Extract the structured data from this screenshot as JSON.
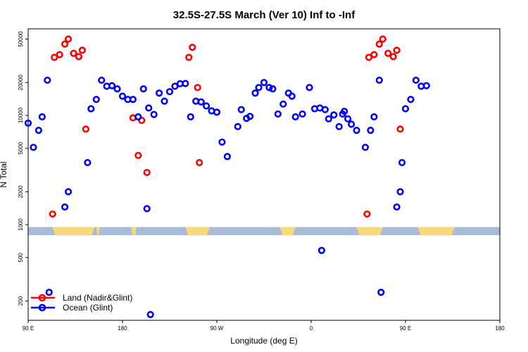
{
  "chart_data": {
    "type": "scatter",
    "title": "32.5S-27.5S March (Ver 10)   Inf to -Inf",
    "xlabel": "Longitude (deg E)",
    "ylabel": "N Total",
    "x_axis": {
      "range": [
        -90,
        180
      ],
      "ticks": [
        -90,
        -36,
        18,
        72,
        126,
        180
      ],
      "tick_labels": [
        "90 E",
        "180",
        "90 W",
        "0",
        "90 E",
        "180"
      ]
    },
    "y_axis": {
      "scale": "log",
      "range": [
        133,
        62000
      ],
      "ticks": [
        200,
        500,
        1000,
        2000,
        5000,
        10000,
        20000,
        50000
      ],
      "tick_labels": [
        "200",
        "500",
        "1000",
        "2000",
        "5000",
        "10000",
        "20000",
        "50000"
      ]
    },
    "map_strip": {
      "y_range": [
        800,
        950
      ],
      "ocean_color": "#a8bcd8",
      "land_color": "#f8d878",
      "land_segments": [
        [
          -76,
          -52
        ],
        [
          -51,
          -49
        ],
        [
          -51,
          -49
        ],
        [
          -31,
          -29
        ],
        [
          -30,
          -28
        ],
        [
          0,
          14
        ],
        [
          54,
          63
        ],
        [
          98,
          108
        ],
        [
          133,
          154
        ],
        [
          105,
          113
        ]
      ]
    },
    "series": [
      {
        "name": "Land (Nadir&Glint)",
        "color": "#ff0000",
        "points": [
          [
            -76,
            1250
          ],
          [
            -75,
            34000
          ],
          [
            -72,
            36000
          ],
          [
            -69,
            45000
          ],
          [
            -67,
            50000
          ],
          [
            -64,
            37000
          ],
          [
            -61,
            34500
          ],
          [
            -59,
            39500
          ],
          [
            -57,
            7500
          ],
          [
            -30,
            9500
          ],
          [
            -27,
            4300
          ],
          [
            -25,
            9000
          ],
          [
            -22,
            3000
          ],
          [
            2,
            34000
          ],
          [
            4,
            42000
          ],
          [
            7,
            18000
          ],
          [
            8,
            3700
          ],
          [
            104,
            1250
          ],
          [
            105,
            34000
          ],
          [
            108,
            36000
          ],
          [
            111,
            45000
          ],
          [
            113,
            50000
          ],
          [
            116,
            37000
          ],
          [
            119,
            34500
          ],
          [
            121,
            39500
          ],
          [
            123,
            7500
          ]
        ]
      },
      {
        "name": "Ocean (Glint)",
        "color": "#0000ff",
        "points": [
          [
            -90,
            8500
          ],
          [
            -87,
            5100
          ],
          [
            -84,
            7300
          ],
          [
            -82,
            9700
          ],
          [
            -79,
            21000
          ],
          [
            -78,
            240
          ],
          [
            -69,
            1450
          ],
          [
            -67,
            2000
          ],
          [
            -56,
            3700
          ],
          [
            -54,
            11500
          ],
          [
            -51,
            14000
          ],
          [
            -48,
            21000
          ],
          [
            -45,
            18500
          ],
          [
            -42,
            18700
          ],
          [
            -39,
            17500
          ],
          [
            -36,
            15000
          ],
          [
            -33,
            14000
          ],
          [
            -30,
            14000
          ],
          [
            -27,
            9700
          ],
          [
            -24,
            17500
          ],
          [
            -21,
            11700
          ],
          [
            -18,
            10200
          ],
          [
            -15,
            16000
          ],
          [
            -12,
            13500
          ],
          [
            -9,
            16500
          ],
          [
            -6,
            18500
          ],
          [
            -3,
            19500
          ],
          [
            0,
            19600
          ],
          [
            3,
            9700
          ],
          [
            6,
            13500
          ],
          [
            9,
            13300
          ],
          [
            12,
            12200
          ],
          [
            15,
            11000
          ],
          [
            18,
            10700
          ],
          [
            21,
            5700
          ],
          [
            24,
            4200
          ],
          [
            30,
            7900
          ],
          [
            32,
            11300
          ],
          [
            35,
            9400
          ],
          [
            37,
            9800
          ],
          [
            40,
            16000
          ],
          [
            42,
            18000
          ],
          [
            45,
            20000
          ],
          [
            48,
            18000
          ],
          [
            50,
            17500
          ],
          [
            53,
            10300
          ],
          [
            56,
            12700
          ],
          [
            59,
            16000
          ],
          [
            61,
            15000
          ],
          [
            63,
            9700
          ],
          [
            -22,
            1400
          ],
          [
            -20,
            150
          ],
          [
            78,
            580
          ],
          [
            90,
            10300
          ],
          [
            93,
            9300
          ],
          [
            98,
            7300
          ],
          [
            103,
            5100
          ],
          [
            106,
            7300
          ],
          [
            108,
            9700
          ],
          [
            111,
            21000
          ],
          [
            112,
            240
          ],
          [
            121,
            1450
          ],
          [
            123,
            2000
          ],
          [
            124,
            3700
          ],
          [
            126,
            11500
          ],
          [
            129,
            14000
          ],
          [
            132,
            21000
          ],
          [
            135,
            18500
          ],
          [
            138,
            18700
          ],
          [
            67,
            10300
          ],
          [
            71,
            18000
          ],
          [
            74,
            11500
          ],
          [
            77,
            11700
          ],
          [
            80,
            11300
          ],
          [
            82,
            9300
          ],
          [
            85,
            10100
          ],
          [
            88,
            7900
          ],
          [
            91,
            10900
          ],
          [
            95,
            8300
          ]
        ]
      }
    ],
    "legend": {
      "placement": "bottom-left",
      "entries": [
        "Land (Nadir&Glint)",
        "Ocean (Glint)"
      ]
    },
    "grid": false
  }
}
